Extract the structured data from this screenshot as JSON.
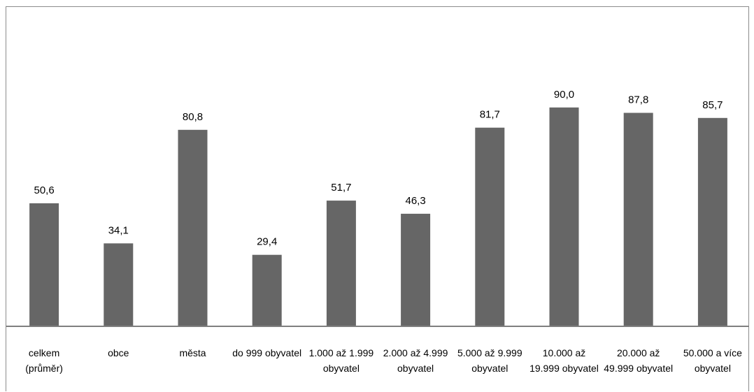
{
  "chart_data": {
    "type": "bar",
    "categories": [
      [
        "celkem",
        "(průměr)"
      ],
      [
        "obce"
      ],
      [
        "města"
      ],
      [
        "do 999 obyvatel"
      ],
      [
        "1.000 až 1.999",
        "obyvatel"
      ],
      [
        "2.000 až 4.999",
        "obyvatel"
      ],
      [
        "5.000 až 9.999",
        "obyvatel"
      ],
      [
        "10.000 až",
        "19.999 obyvatel"
      ],
      [
        "20.000 až",
        "49.999 obyvatel"
      ],
      [
        "50.000 a více",
        "obyvatel"
      ]
    ],
    "values": [
      50.6,
      34.1,
      80.8,
      29.4,
      51.7,
      46.3,
      81.7,
      90.0,
      87.8,
      85.7
    ],
    "value_labels": [
      "50,6",
      "34,1",
      "80,8",
      "29,4",
      "51,7",
      "46,3",
      "81,7",
      "90,0",
      "87,8",
      "85,7"
    ],
    "title": "",
    "xlabel": "",
    "ylabel": "",
    "ylim": [
      0,
      100
    ],
    "grid": false,
    "legend": "none",
    "bar_color": "#666666",
    "axis_color": "#7f7f7f"
  }
}
